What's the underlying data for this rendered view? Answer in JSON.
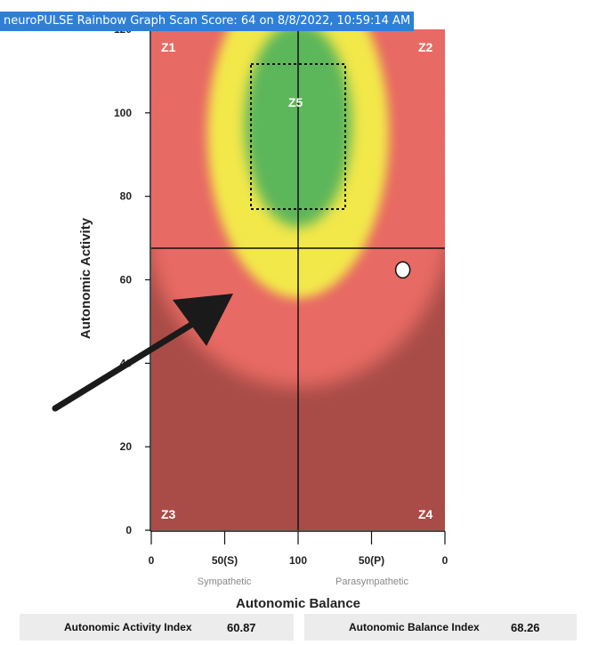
{
  "header": {
    "title": "neuroPULSE Rainbow Graph Scan Score: 64 on 8/8/2022, 10:59:14 AM"
  },
  "chart_data": {
    "type": "scatter",
    "title": "neuroPULSE Rainbow Graph Scan Score: 64 on 8/8/2022, 10:59:14 AM",
    "xlabel": "Autonomic Balance",
    "ylabel": "Autonomic Activity",
    "x_ticks": [
      "0",
      "50(S)",
      "100",
      "50(P)",
      "0"
    ],
    "x_captions": {
      "left": "Sympathetic",
      "right": "Parasympathetic"
    },
    "y_ticks": [
      "0",
      "20",
      "40",
      "60",
      "80",
      "100",
      "120"
    ],
    "ylim": [
      0,
      120
    ],
    "zones": [
      "Z1",
      "Z2",
      "Z3",
      "Z4",
      "Z5"
    ],
    "points": [
      {
        "x": 68.26,
        "y": 60.87
      }
    ],
    "crosshair": {
      "x": 100,
      "y": 68
    },
    "colors": {
      "red": "#e86a64",
      "dark_red": "#a94c47",
      "yellow": "#f2e84a",
      "green": "#5cb65a",
      "point": "#ffffff",
      "arrow": "#1a1a1a"
    }
  },
  "indices": [
    {
      "label": "Autonomic Activity Index",
      "value": "60.87"
    },
    {
      "label": "Autonomic Balance Index",
      "value": "68.26"
    }
  ]
}
